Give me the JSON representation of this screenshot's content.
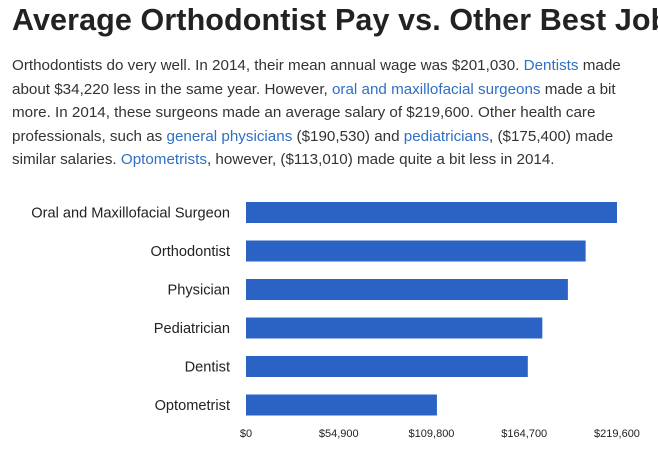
{
  "article": {
    "title": "Average Orthodontist Pay vs. Other Best Jobs",
    "p1": "Orthodontists do very well. In 2014, their mean annual wage was $201,030. ",
    "link_dentists": "Dentists",
    "p2": " made about $34,220 less in the same year. However, ",
    "link_oral": "oral and maxillofacial surgeons",
    "p3": " made a bit more. In 2014, these surgeons made an average salary of $219,600. Other health care professionals, such as ",
    "link_physicians": "general physicians",
    "p4": " ($190,530) and ",
    "link_pediatricians": "pediatricians",
    "p5": ", ($175,400) made similar salaries. ",
    "link_optometrists": "Optometrists",
    "p6": ", however, ($113,010) made quite a bit less in 2014."
  },
  "chart_data": {
    "type": "bar",
    "orientation": "horizontal",
    "title": "",
    "xlabel": "",
    "ylabel": "",
    "categories": [
      "Oral and Maxillofacial Surgeon",
      "Orthodontist",
      "Physician",
      "Pediatrician",
      "Dentist",
      "Optometrist"
    ],
    "values": [
      219600,
      201030,
      190530,
      175400,
      166810,
      113010
    ],
    "xlim": [
      0,
      219600
    ],
    "ticks": [
      0,
      54900,
      109800,
      164700,
      219600
    ],
    "tick_labels": [
      "$0",
      "$54,900",
      "$109,800",
      "$164,700",
      "$219,600"
    ],
    "grid": false,
    "bar_color": "#2a63c4"
  }
}
